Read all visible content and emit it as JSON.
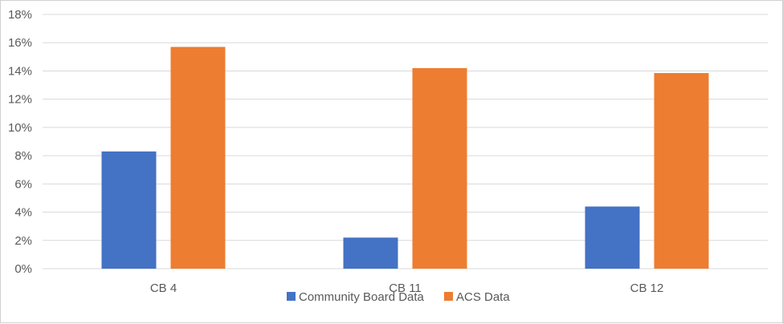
{
  "chart_data": {
    "type": "bar",
    "categories": [
      "CB 4",
      "CB 11",
      "CB 12"
    ],
    "series": [
      {
        "name": "Community Board Data",
        "values": [
          8.3,
          2.2,
          4.4
        ]
      },
      {
        "name": "ACS Data",
        "values": [
          15.7,
          14.2,
          13.85
        ]
      }
    ],
    "y_tick_labels": [
      "0%",
      "2%",
      "4%",
      "6%",
      "8%",
      "10%",
      "12%",
      "14%",
      "16%",
      "18%"
    ],
    "ylim": [
      0,
      18
    ],
    "y_step": 2,
    "grid": true,
    "legend_position": "bottom",
    "colors": {
      "series": [
        "#4472C4",
        "#ED7D31"
      ],
      "grid": "#d9d9d9",
      "text": "#595959"
    }
  }
}
